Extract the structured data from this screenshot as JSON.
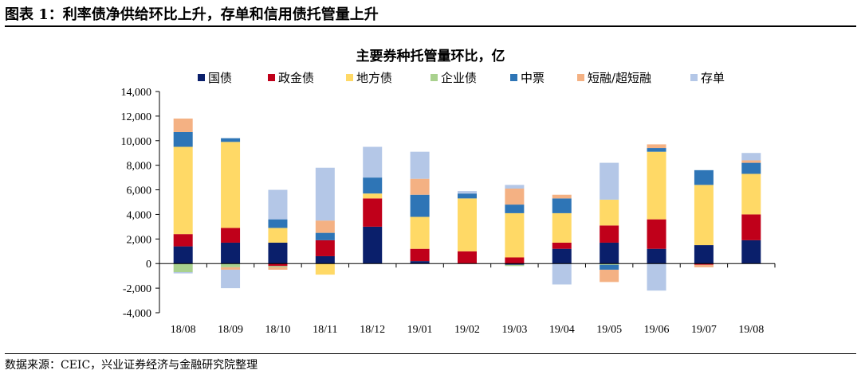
{
  "figure": {
    "title": "图表 1：利率债净供给环比上升，存单和信用债托管量上升",
    "source": "数据来源：CEIC，兴业证券经济与金融研究院整理"
  },
  "chart_data": {
    "type": "bar",
    "stacked": true,
    "title": "主要券种托管量环比，亿",
    "xlabel": "",
    "ylabel": "",
    "ylim": [
      -4000,
      14000
    ],
    "yticks": [
      -4000,
      -2000,
      0,
      2000,
      4000,
      6000,
      8000,
      10000,
      12000,
      14000
    ],
    "ytick_labels": [
      "-4,000",
      "-2,000",
      "0",
      "2,000",
      "4,000",
      "6,000",
      "8,000",
      "10,000",
      "12,000",
      "14,000"
    ],
    "grid": false,
    "legend_position": "top",
    "categories": [
      "18/08",
      "18/09",
      "18/10",
      "18/11",
      "18/12",
      "19/01",
      "19/02",
      "19/03",
      "19/04",
      "19/05",
      "19/06",
      "19/07",
      "19/08"
    ],
    "series": [
      {
        "name": "国债",
        "color": "#0a1f6b",
        "values": [
          1400,
          1700,
          1700,
          600,
          3000,
          200,
          0,
          -100,
          1200,
          1700,
          1200,
          1500,
          1900
        ]
      },
      {
        "name": "政金债",
        "color": "#c0001a",
        "values": [
          1000,
          1200,
          -200,
          1300,
          2300,
          1000,
          1000,
          500,
          500,
          1400,
          2400,
          -100,
          2100
        ]
      },
      {
        "name": "地方债",
        "color": "#ffd966",
        "values": [
          7100,
          7000,
          1200,
          -900,
          400,
          2600,
          4300,
          3600,
          2400,
          2100,
          5500,
          4900,
          3300
        ]
      },
      {
        "name": "企业债",
        "color": "#a9d18e",
        "values": [
          -700,
          -300,
          -100,
          0,
          0,
          0,
          0,
          -100,
          0,
          -100,
          0,
          0,
          0
        ]
      },
      {
        "name": "中票",
        "color": "#2e75b6",
        "values": [
          1200,
          300,
          700,
          600,
          1300,
          1800,
          400,
          700,
          1200,
          -400,
          300,
          1200,
          900
        ]
      },
      {
        "name": "短融/超短融",
        "color": "#f4b183",
        "values": [
          1100,
          -200,
          -200,
          1000,
          0,
          1300,
          0,
          1300,
          300,
          -1000,
          300,
          -200,
          200
        ]
      },
      {
        "name": "存单",
        "color": "#b4c7e7",
        "values": [
          -100,
          -1500,
          2400,
          4300,
          2500,
          2200,
          200,
          300,
          -1700,
          3000,
          -2200,
          0,
          600
        ]
      }
    ]
  }
}
